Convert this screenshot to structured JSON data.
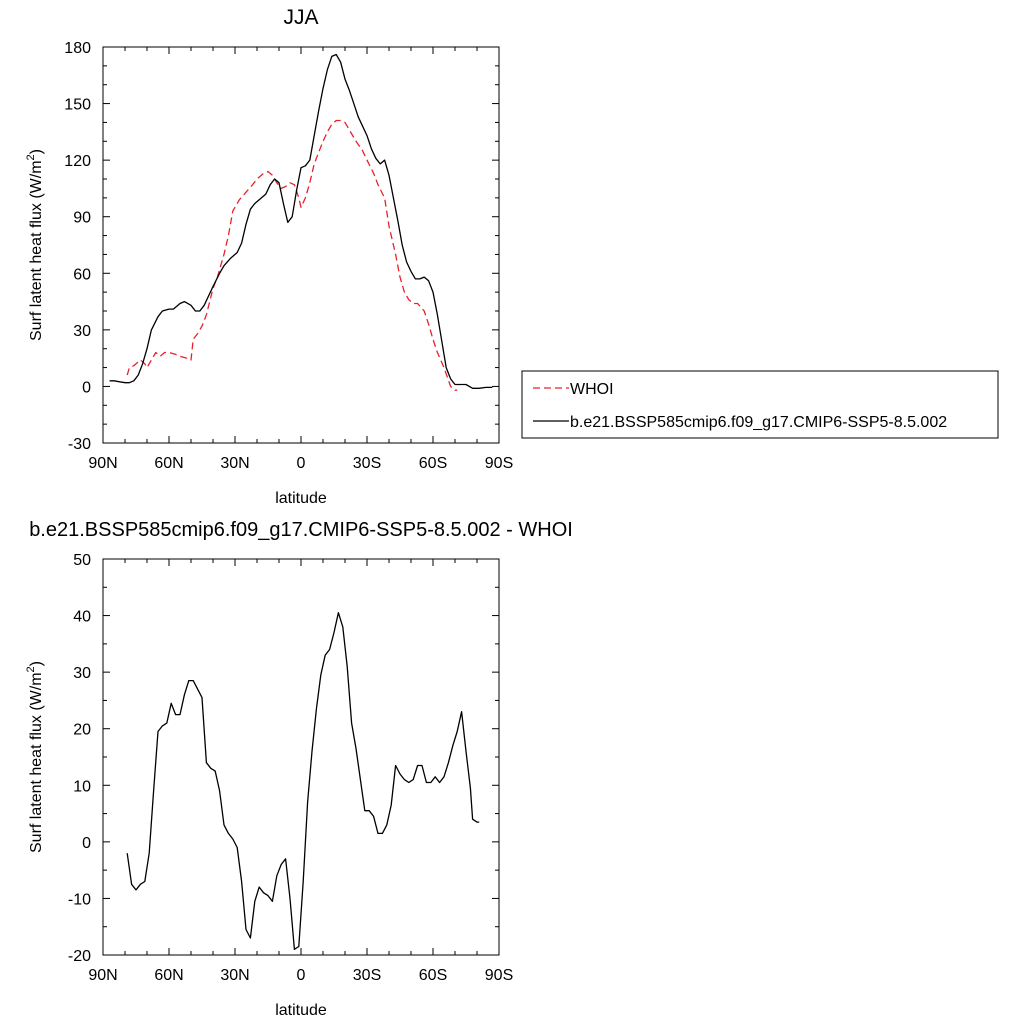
{
  "chart_data": [
    {
      "type": "line",
      "title": "JJA",
      "xlabel": "latitude",
      "ylabel": "Surf latent heat flux (W/m",
      "ylabel_sup": "2",
      "ylabel_close": ")",
      "xlim": [
        90,
        -90
      ],
      "ylim": [
        -30,
        180
      ],
      "xticks": [
        {
          "value": 90,
          "label": "90N"
        },
        {
          "value": 60,
          "label": "60N"
        },
        {
          "value": 30,
          "label": "30N"
        },
        {
          "value": 0,
          "label": "0"
        },
        {
          "value": -30,
          "label": "30S"
        },
        {
          "value": -60,
          "label": "60S"
        },
        {
          "value": -90,
          "label": "90S"
        }
      ],
      "yticks": [
        {
          "value": 180,
          "label": "180"
        },
        {
          "value": 150,
          "label": "150"
        },
        {
          "value": 120,
          "label": "120"
        },
        {
          "value": 90,
          "label": "90"
        },
        {
          "value": 60,
          "label": "60"
        },
        {
          "value": 30,
          "label": "30"
        },
        {
          "value": 0,
          "label": "0"
        },
        {
          "value": -30,
          "label": "-30"
        }
      ],
      "legend_position": "outside-right",
      "series": [
        {
          "name": "WHOI",
          "color": "#e8212b",
          "dash": "dashed",
          "points": [
            [
              79,
              6
            ],
            [
              78,
              10
            ],
            [
              76,
              11
            ],
            [
              73,
              14
            ],
            [
              71,
              12
            ],
            [
              70,
              10
            ],
            [
              68,
              14
            ],
            [
              66,
              18
            ],
            [
              64,
              16
            ],
            [
              62,
              18
            ],
            [
              60,
              18
            ],
            [
              57,
              17
            ],
            [
              55,
              16
            ],
            [
              52,
              15
            ],
            [
              50,
              14
            ],
            [
              49,
              25
            ],
            [
              47,
              28
            ],
            [
              45,
              32
            ],
            [
              43,
              38
            ],
            [
              40,
              52
            ],
            [
              38,
              58
            ],
            [
              35,
              70
            ],
            [
              33,
              80
            ],
            [
              31,
              93
            ],
            [
              28,
              99
            ],
            [
              25,
              103
            ],
            [
              22,
              107
            ],
            [
              20,
              110
            ],
            [
              17,
              113
            ],
            [
              15,
              114
            ],
            [
              13,
              112
            ],
            [
              11,
              108
            ],
            [
              9,
              105
            ],
            [
              7,
              106
            ],
            [
              5,
              108
            ],
            [
              3,
              107
            ],
            [
              1,
              100
            ],
            [
              0,
              95
            ],
            [
              -2,
              100
            ],
            [
              -4,
              108
            ],
            [
              -6,
              118
            ],
            [
              -8,
              124
            ],
            [
              -10,
              130
            ],
            [
              -12,
              135
            ],
            [
              -14,
              139
            ],
            [
              -16,
              141
            ],
            [
              -18,
              141
            ],
            [
              -20,
              140
            ],
            [
              -22,
              136
            ],
            [
              -25,
              130
            ],
            [
              -28,
              125
            ],
            [
              -30,
              120
            ],
            [
              -33,
              113
            ],
            [
              -35,
              107
            ],
            [
              -38,
              100
            ],
            [
              -40,
              85
            ],
            [
              -43,
              70
            ],
            [
              -45,
              58
            ],
            [
              -47,
              50
            ],
            [
              -49,
              46
            ],
            [
              -51,
              44
            ],
            [
              -53,
              44
            ],
            [
              -56,
              40
            ],
            [
              -58,
              33
            ],
            [
              -60,
              25
            ],
            [
              -62,
              18
            ],
            [
              -65,
              10
            ],
            [
              -68,
              0
            ],
            [
              -70,
              -2
            ],
            [
              -71,
              -2
            ]
          ]
        },
        {
          "name": "b.e21.BSSP585cmip6.f09_g17.CMIP6-SSP5-8.5.002",
          "color": "#000000",
          "dash": "solid",
          "points": [
            [
              87,
              3
            ],
            [
              85,
              3
            ],
            [
              80,
              2
            ],
            [
              78,
              2
            ],
            [
              76,
              3
            ],
            [
              74,
              6
            ],
            [
              72,
              12
            ],
            [
              70,
              20
            ],
            [
              68,
              30
            ],
            [
              65,
              37
            ],
            [
              63,
              40
            ],
            [
              60,
              41
            ],
            [
              58,
              41
            ],
            [
              55,
              44
            ],
            [
              53,
              45
            ],
            [
              50,
              43
            ],
            [
              48,
              40
            ],
            [
              46,
              40
            ],
            [
              44,
              43
            ],
            [
              42,
              48
            ],
            [
              40,
              53
            ],
            [
              37,
              60
            ],
            [
              35,
              64
            ],
            [
              32,
              68
            ],
            [
              29,
              71
            ],
            [
              27,
              76
            ],
            [
              25,
              86
            ],
            [
              23,
              94
            ],
            [
              21,
              97
            ],
            [
              18,
              100
            ],
            [
              16,
              102
            ],
            [
              14,
              107
            ],
            [
              12,
              110
            ],
            [
              10,
              108
            ],
            [
              8,
              97
            ],
            [
              6,
              87
            ],
            [
              4,
              90
            ],
            [
              2,
              104
            ],
            [
              0,
              116
            ],
            [
              -2,
              117
            ],
            [
              -4,
              120
            ],
            [
              -6,
              133
            ],
            [
              -8,
              146
            ],
            [
              -10,
              158
            ],
            [
              -12,
              168
            ],
            [
              -14,
              175
            ],
            [
              -16,
              176
            ],
            [
              -18,
              172
            ],
            [
              -20,
              163
            ],
            [
              -22,
              157
            ],
            [
              -24,
              150
            ],
            [
              -26,
              143
            ],
            [
              -28,
              138
            ],
            [
              -30,
              133
            ],
            [
              -32,
              126
            ],
            [
              -34,
              121
            ],
            [
              -36,
              118
            ],
            [
              -38,
              120
            ],
            [
              -40,
              112
            ],
            [
              -42,
              100
            ],
            [
              -44,
              88
            ],
            [
              -46,
              75
            ],
            [
              -48,
              66
            ],
            [
              -50,
              61
            ],
            [
              -52,
              57
            ],
            [
              -54,
              57
            ],
            [
              -56,
              58
            ],
            [
              -58,
              56
            ],
            [
              -60,
              50
            ],
            [
              -62,
              38
            ],
            [
              -64,
              24
            ],
            [
              -66,
              10
            ],
            [
              -68,
              4
            ],
            [
              -70,
              1
            ],
            [
              -72,
              1
            ],
            [
              -75,
              1
            ],
            [
              -78,
              -1
            ],
            [
              -81,
              -1
            ],
            [
              -84,
              -0.5
            ],
            [
              -87,
              -0.5
            ]
          ]
        }
      ]
    },
    {
      "type": "line",
      "title": "b.e21.BSSP585cmip6.f09_g17.CMIP6-SSP5-8.5.002 - WHOI",
      "xlabel": "latitude",
      "ylabel": "Surf latent heat flux (W/m",
      "ylabel_sup": "2",
      "ylabel_close": ")",
      "xlim": [
        90,
        -90
      ],
      "ylim": [
        -20,
        50
      ],
      "xticks": [
        {
          "value": 90,
          "label": "90N"
        },
        {
          "value": 60,
          "label": "60N"
        },
        {
          "value": 30,
          "label": "30N"
        },
        {
          "value": 0,
          "label": "0"
        },
        {
          "value": -30,
          "label": "30S"
        },
        {
          "value": -60,
          "label": "60S"
        },
        {
          "value": -90,
          "label": "90S"
        }
      ],
      "yticks": [
        {
          "value": 50,
          "label": "50"
        },
        {
          "value": 40,
          "label": "40"
        },
        {
          "value": 30,
          "label": "30"
        },
        {
          "value": 20,
          "label": "20"
        },
        {
          "value": 10,
          "label": "10"
        },
        {
          "value": 0,
          "label": "0"
        },
        {
          "value": -10,
          "label": "-10"
        },
        {
          "value": -20,
          "label": "-20"
        }
      ],
      "legend_position": "none",
      "series": [
        {
          "color": "#000000",
          "dash": "solid",
          "points": [
            [
              79,
              -2
            ],
            [
              77,
              -7.5
            ],
            [
              75,
              -8.5
            ],
            [
              73,
              -7.5
            ],
            [
              71,
              -7
            ],
            [
              69,
              -2
            ],
            [
              67,
              9
            ],
            [
              65,
              19.5
            ],
            [
              63,
              20.5
            ],
            [
              61,
              21
            ],
            [
              59,
              24.5
            ],
            [
              57,
              22.5
            ],
            [
              55,
              22.5
            ],
            [
              53,
              26
            ],
            [
              51,
              28.5
            ],
            [
              49,
              28.5
            ],
            [
              47,
              27
            ],
            [
              45,
              25.5
            ],
            [
              43,
              14
            ],
            [
              41,
              13
            ],
            [
              39,
              12.5
            ],
            [
              37,
              9
            ],
            [
              35,
              3
            ],
            [
              33,
              1.5
            ],
            [
              31,
              0.5
            ],
            [
              29,
              -1
            ],
            [
              27,
              -7
            ],
            [
              25,
              -15.5
            ],
            [
              23,
              -17
            ],
            [
              21,
              -10.5
            ],
            [
              19,
              -8
            ],
            [
              17,
              -9
            ],
            [
              15,
              -9.5
            ],
            [
              13,
              -10.5
            ],
            [
              11,
              -6
            ],
            [
              9,
              -4
            ],
            [
              7,
              -3
            ],
            [
              5,
              -10
            ],
            [
              3,
              -19
            ],
            [
              1,
              -18.5
            ],
            [
              -1,
              -7
            ],
            [
              -3,
              7
            ],
            [
              -5,
              16
            ],
            [
              -7,
              23.5
            ],
            [
              -9,
              29.5
            ],
            [
              -11,
              33
            ],
            [
              -13,
              34
            ],
            [
              -15,
              37
            ],
            [
              -17,
              40.5
            ],
            [
              -19,
              38
            ],
            [
              -21,
              31
            ],
            [
              -23,
              21
            ],
            [
              -25,
              16.5
            ],
            [
              -27,
              11
            ],
            [
              -29,
              5.5
            ],
            [
              -31,
              5.5
            ],
            [
              -33,
              4.5
            ],
            [
              -35,
              1.5
            ],
            [
              -37,
              1.5
            ],
            [
              -39,
              3
            ],
            [
              -41,
              6.5
            ],
            [
              -43,
              13.5
            ],
            [
              -45,
              12
            ],
            [
              -47,
              11
            ],
            [
              -49,
              10.5
            ],
            [
              -51,
              11
            ],
            [
              -53,
              13.5
            ],
            [
              -55,
              13.5
            ],
            [
              -57,
              10.5
            ],
            [
              -59,
              10.5
            ],
            [
              -61,
              11.5
            ],
            [
              -63,
              10.5
            ],
            [
              -65,
              11.5
            ],
            [
              -67,
              14
            ],
            [
              -69,
              17
            ],
            [
              -71,
              19.5
            ],
            [
              -73,
              23
            ],
            [
              -75,
              16
            ],
            [
              -77,
              9.5
            ],
            [
              -78,
              4
            ],
            [
              -80,
              3.5
            ],
            [
              -81,
              3.5
            ]
          ]
        }
      ]
    }
  ],
  "legend": {
    "items": [
      {
        "label": "WHOI",
        "color": "#e8212b",
        "dash": "dashed"
      },
      {
        "label": "b.e21.BSSP585cmip6.f09_g17.CMIP6-SSP5-8.5.002",
        "color": "#000000",
        "dash": "solid"
      }
    ]
  }
}
